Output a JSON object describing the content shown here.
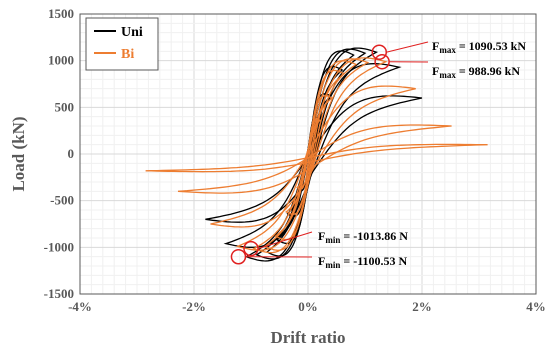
{
  "chart_data": {
    "type": "line",
    "title": "",
    "xlabel": "Drift ratio",
    "ylabel": "Load (kN)",
    "xlim": [
      -0.04,
      0.04
    ],
    "ylim": [
      -1500,
      1500
    ],
    "x_ticks": [
      -0.04,
      -0.02,
      0,
      0.02,
      0.04
    ],
    "x_tick_labels": [
      "-4%",
      "-2%",
      "0%",
      "2%",
      "4%"
    ],
    "y_ticks": [
      -1500,
      -1000,
      -500,
      0,
      500,
      1000,
      1500
    ],
    "y_tick_labels": [
      "-1500",
      "-1000",
      "-500",
      "0",
      "500",
      "1000",
      "1500"
    ],
    "grid": true,
    "legend_position": "top-left",
    "series": [
      {
        "name": "Uni",
        "color": "#000000",
        "peaks": [
          {
            "drift": 0.002,
            "load_pos": 380,
            "load_neg": -380
          },
          {
            "drift": 0.004,
            "load_pos": 620,
            "load_neg": -640
          },
          {
            "drift": 0.006,
            "load_pos": 900,
            "load_neg": -920
          },
          {
            "drift": 0.008,
            "load_pos": 1060,
            "load_neg": -1050
          },
          {
            "drift": 0.01,
            "load_pos": 1080,
            "load_neg": -1080
          },
          {
            "drift": 0.012,
            "load_pos": 1090.53,
            "load_neg": -1100.53
          },
          {
            "drift": 0.016,
            "load_pos": 930,
            "load_neg": -960
          },
          {
            "drift": 0.02,
            "load_pos": 600,
            "load_neg": -700
          }
        ]
      },
      {
        "name": "Bi",
        "color": "#ED7D31",
        "peaks": [
          {
            "drift": 0.002,
            "load_pos": 360,
            "load_neg": -360
          },
          {
            "drift": 0.004,
            "load_pos": 600,
            "load_neg": -620
          },
          {
            "drift": 0.006,
            "load_pos": 860,
            "load_neg": -880
          },
          {
            "drift": 0.008,
            "load_pos": 960,
            "load_neg": -990
          },
          {
            "drift": 0.01,
            "load_pos": 980,
            "load_neg": -1013.86
          },
          {
            "drift": 0.013,
            "load_pos": 988.96,
            "load_neg": -990
          },
          {
            "drift": 0.018,
            "load_pos": 700,
            "load_neg": -750
          },
          {
            "drift": 0.024,
            "load_pos": 300,
            "load_neg": -400
          },
          {
            "drift": 0.03,
            "load_pos": 100,
            "load_neg": -180
          }
        ]
      }
    ],
    "annotations": [
      {
        "name": "fmax-uni",
        "label": "F",
        "sub": "max",
        "value": " = 1090.53 kN",
        "point": [
          0.0125,
          1090.53
        ],
        "series": "Uni"
      },
      {
        "name": "fmax-bi",
        "label": "F",
        "sub": "max",
        "value": " = 988.96 kN",
        "point": [
          0.013,
          988.96
        ],
        "series": "Bi"
      },
      {
        "name": "fmin-bi",
        "label": "F",
        "sub": "min",
        "value": " = -1013.86 N",
        "point": [
          -0.01,
          -1013.86
        ],
        "series": "Bi"
      },
      {
        "name": "fmin-uni",
        "label": "F",
        "sub": "min",
        "value": " = -1100.53 N",
        "point": [
          -0.0122,
          -1100.53
        ],
        "series": "Uni"
      }
    ]
  }
}
